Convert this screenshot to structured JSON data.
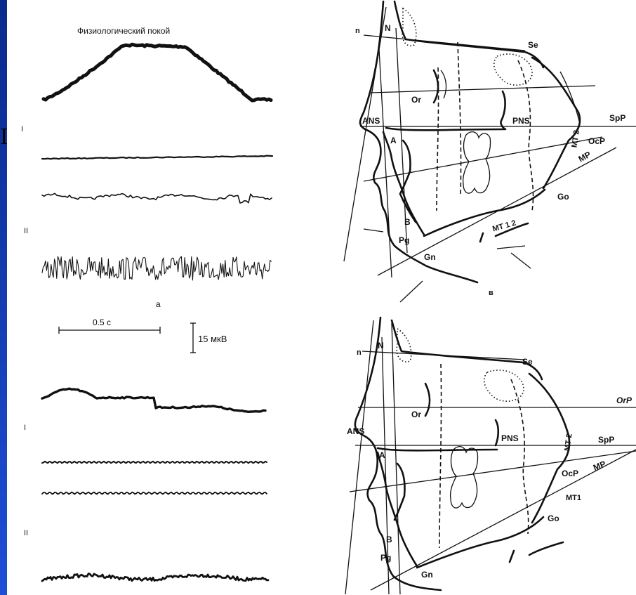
{
  "slide": {
    "side_letter": "I"
  },
  "emg": {
    "title": "Физиологический покой",
    "label_a": "а",
    "group_top": {
      "label_I": "I",
      "label_II": "II"
    },
    "group_bottom": {
      "label_I": "I",
      "label_II": "II"
    },
    "time_scale": "0.5 с",
    "amp_scale": "15 мкВ"
  },
  "ceph_top": {
    "panel_letter": "в",
    "labels": {
      "n": "n",
      "N": "N",
      "Se": "Se",
      "Or": "Or",
      "ANS": "ANS",
      "PNS": "PNS",
      "SpP": "SpP",
      "OcP": "OcP",
      "MP": "MP",
      "MT2": "MT 2",
      "A": "A",
      "Go": "Go",
      "B": "B",
      "Pg": "Pg",
      "Gn": "Gn",
      "MT12": "MT 1 2"
    }
  },
  "ceph_bottom": {
    "labels": {
      "n": "n",
      "N": "N",
      "Se": "Se",
      "Or": "Or",
      "OrP": "OrP",
      "ANS": "ANS",
      "PNS": "PNS",
      "SpP": "SpP",
      "OcP": "OcP",
      "MP": "MP",
      "MT1": "MT1",
      "MT2": "MT 2",
      "A": "A",
      "Go": "Go",
      "B": "B",
      "Pg": "Pg",
      "Gn": "Gn"
    }
  }
}
